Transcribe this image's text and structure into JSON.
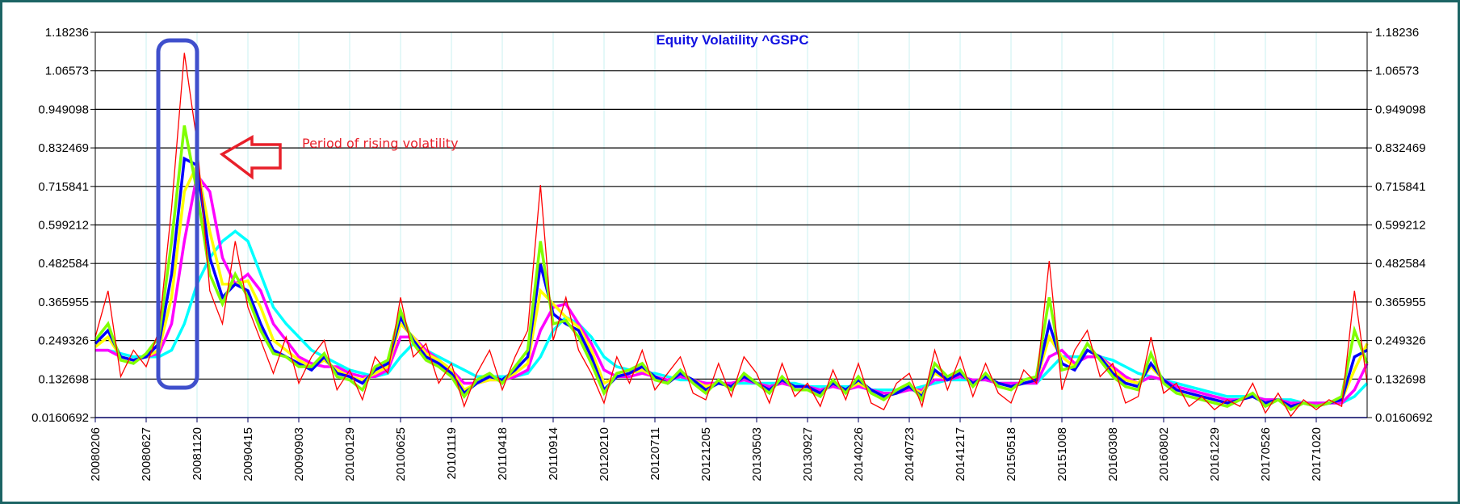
{
  "chart_data": {
    "type": "line",
    "title": "Equity Volatility ^GSPC",
    "title_color": "#1010e0",
    "xlabel": "",
    "ylabel": "",
    "ylim": [
      0.0160692,
      1.18236
    ],
    "y_ticks": [
      "0.0160692",
      "0.132698",
      "0.249326",
      "0.365955",
      "0.482584",
      "0.599212",
      "0.715841",
      "0.832469",
      "0.949098",
      "1.06573",
      "1.18236"
    ],
    "y_axis_both_sides": true,
    "x_tick_labels": [
      "20080206",
      "20080627",
      "20081120",
      "20090415",
      "20090903",
      "20100129",
      "20100625",
      "20101119",
      "20110418",
      "20110914",
      "20120210",
      "20120711",
      "20121205",
      "20130503",
      "20130927",
      "20140226",
      "20140723",
      "20141217",
      "20150518",
      "20151008",
      "20160308",
      "20160802",
      "20161229",
      "20170526",
      "20171020"
    ],
    "grid": {
      "horizontal": true,
      "vertical": true,
      "horizontal_color": "#000000",
      "vertical_color": "#c8f2f2"
    },
    "legend": "none",
    "series": [
      {
        "color": "#00ffff",
        "values": [
          0.22,
          0.22,
          0.21,
          0.2,
          0.2,
          0.2,
          0.22,
          0.3,
          0.42,
          0.5,
          0.55,
          0.58,
          0.55,
          0.45,
          0.35,
          0.3,
          0.26,
          0.22,
          0.2,
          0.18,
          0.16,
          0.15,
          0.14,
          0.15,
          0.2,
          0.24,
          0.22,
          0.2,
          0.18,
          0.16,
          0.14,
          0.14,
          0.14,
          0.14,
          0.15,
          0.2,
          0.28,
          0.32,
          0.3,
          0.26,
          0.2,
          0.17,
          0.16,
          0.15,
          0.15,
          0.14,
          0.13,
          0.13,
          0.12,
          0.12,
          0.12,
          0.12,
          0.12,
          0.12,
          0.12,
          0.12,
          0.11,
          0.11,
          0.11,
          0.11,
          0.11,
          0.1,
          0.1,
          0.1,
          0.1,
          0.11,
          0.12,
          0.13,
          0.13,
          0.13,
          0.13,
          0.12,
          0.12,
          0.12,
          0.12,
          0.16,
          0.2,
          0.2,
          0.2,
          0.2,
          0.19,
          0.17,
          0.15,
          0.14,
          0.13,
          0.12,
          0.11,
          0.1,
          0.09,
          0.08,
          0.08,
          0.08,
          0.07,
          0.07,
          0.07,
          0.06,
          0.06,
          0.06,
          0.06,
          0.08,
          0.12
        ]
      },
      {
        "color": "#ff00ff",
        "values": [
          0.22,
          0.22,
          0.2,
          0.19,
          0.2,
          0.21,
          0.3,
          0.55,
          0.75,
          0.7,
          0.5,
          0.42,
          0.45,
          0.4,
          0.3,
          0.25,
          0.2,
          0.18,
          0.17,
          0.17,
          0.15,
          0.14,
          0.14,
          0.16,
          0.26,
          0.26,
          0.22,
          0.19,
          0.16,
          0.12,
          0.12,
          0.13,
          0.13,
          0.14,
          0.16,
          0.28,
          0.35,
          0.36,
          0.3,
          0.24,
          0.16,
          0.14,
          0.14,
          0.15,
          0.14,
          0.13,
          0.14,
          0.13,
          0.12,
          0.12,
          0.12,
          0.13,
          0.12,
          0.11,
          0.12,
          0.11,
          0.11,
          0.1,
          0.11,
          0.1,
          0.11,
          0.1,
          0.09,
          0.09,
          0.1,
          0.1,
          0.13,
          0.13,
          0.14,
          0.13,
          0.13,
          0.12,
          0.12,
          0.12,
          0.12,
          0.2,
          0.22,
          0.18,
          0.2,
          0.2,
          0.17,
          0.14,
          0.12,
          0.14,
          0.13,
          0.11,
          0.1,
          0.09,
          0.08,
          0.07,
          0.07,
          0.08,
          0.07,
          0.07,
          0.06,
          0.06,
          0.06,
          0.06,
          0.06,
          0.1,
          0.18
        ]
      },
      {
        "color": "#ffff00",
        "values": [
          0.23,
          0.26,
          0.2,
          0.19,
          0.2,
          0.22,
          0.38,
          0.7,
          0.78,
          0.58,
          0.42,
          0.42,
          0.43,
          0.35,
          0.25,
          0.22,
          0.19,
          0.17,
          0.19,
          0.16,
          0.14,
          0.13,
          0.15,
          0.17,
          0.3,
          0.26,
          0.21,
          0.19,
          0.16,
          0.1,
          0.12,
          0.13,
          0.13,
          0.15,
          0.18,
          0.4,
          0.36,
          0.32,
          0.29,
          0.22,
          0.12,
          0.14,
          0.15,
          0.16,
          0.14,
          0.12,
          0.15,
          0.13,
          0.11,
          0.12,
          0.11,
          0.14,
          0.12,
          0.1,
          0.13,
          0.11,
          0.11,
          0.09,
          0.12,
          0.1,
          0.12,
          0.1,
          0.08,
          0.09,
          0.11,
          0.09,
          0.15,
          0.13,
          0.15,
          0.12,
          0.14,
          0.12,
          0.11,
          0.12,
          0.13,
          0.26,
          0.2,
          0.17,
          0.22,
          0.2,
          0.16,
          0.13,
          0.12,
          0.17,
          0.13,
          0.1,
          0.09,
          0.08,
          0.07,
          0.06,
          0.07,
          0.08,
          0.06,
          0.07,
          0.05,
          0.06,
          0.05,
          0.06,
          0.07,
          0.16,
          0.24
        ]
      },
      {
        "color": "#0000ff",
        "values": [
          0.24,
          0.28,
          0.2,
          0.19,
          0.2,
          0.24,
          0.45,
          0.8,
          0.78,
          0.5,
          0.38,
          0.42,
          0.4,
          0.3,
          0.22,
          0.2,
          0.18,
          0.16,
          0.2,
          0.15,
          0.14,
          0.12,
          0.16,
          0.18,
          0.32,
          0.25,
          0.2,
          0.18,
          0.15,
          0.09,
          0.12,
          0.14,
          0.13,
          0.16,
          0.2,
          0.48,
          0.33,
          0.3,
          0.28,
          0.2,
          0.1,
          0.14,
          0.15,
          0.17,
          0.14,
          0.12,
          0.15,
          0.13,
          0.1,
          0.12,
          0.11,
          0.14,
          0.12,
          0.1,
          0.13,
          0.11,
          0.11,
          0.09,
          0.12,
          0.1,
          0.13,
          0.1,
          0.08,
          0.09,
          0.11,
          0.08,
          0.16,
          0.13,
          0.15,
          0.12,
          0.14,
          0.12,
          0.11,
          0.12,
          0.13,
          0.3,
          0.18,
          0.16,
          0.22,
          0.2,
          0.15,
          0.12,
          0.11,
          0.18,
          0.13,
          0.1,
          0.09,
          0.08,
          0.07,
          0.06,
          0.07,
          0.08,
          0.06,
          0.07,
          0.05,
          0.06,
          0.05,
          0.06,
          0.07,
          0.2,
          0.22
        ]
      },
      {
        "color": "#80ff00",
        "values": [
          0.25,
          0.3,
          0.19,
          0.18,
          0.21,
          0.26,
          0.55,
          0.9,
          0.7,
          0.45,
          0.36,
          0.45,
          0.38,
          0.28,
          0.21,
          0.2,
          0.17,
          0.17,
          0.21,
          0.14,
          0.13,
          0.1,
          0.17,
          0.19,
          0.34,
          0.24,
          0.19,
          0.17,
          0.14,
          0.08,
          0.13,
          0.15,
          0.12,
          0.17,
          0.22,
          0.55,
          0.3,
          0.31,
          0.26,
          0.18,
          0.09,
          0.15,
          0.16,
          0.18,
          0.13,
          0.12,
          0.16,
          0.12,
          0.09,
          0.13,
          0.1,
          0.15,
          0.12,
          0.09,
          0.14,
          0.1,
          0.1,
          0.08,
          0.13,
          0.09,
          0.14,
          0.09,
          0.07,
          0.1,
          0.12,
          0.07,
          0.18,
          0.14,
          0.16,
          0.11,
          0.15,
          0.11,
          0.1,
          0.13,
          0.14,
          0.38,
          0.16,
          0.17,
          0.24,
          0.19,
          0.14,
          0.11,
          0.1,
          0.21,
          0.12,
          0.09,
          0.08,
          0.07,
          0.06,
          0.05,
          0.07,
          0.09,
          0.05,
          0.07,
          0.04,
          0.06,
          0.05,
          0.06,
          0.08,
          0.28,
          0.18
        ]
      },
      {
        "color": "#ff0000",
        "values": [
          0.26,
          0.4,
          0.14,
          0.22,
          0.17,
          0.28,
          0.65,
          1.12,
          0.85,
          0.4,
          0.3,
          0.55,
          0.35,
          0.25,
          0.15,
          0.26,
          0.12,
          0.2,
          0.25,
          0.1,
          0.16,
          0.07,
          0.2,
          0.15,
          0.38,
          0.2,
          0.24,
          0.12,
          0.18,
          0.05,
          0.15,
          0.22,
          0.1,
          0.2,
          0.28,
          0.72,
          0.25,
          0.38,
          0.22,
          0.15,
          0.06,
          0.2,
          0.12,
          0.22,
          0.1,
          0.15,
          0.2,
          0.09,
          0.07,
          0.18,
          0.08,
          0.2,
          0.15,
          0.06,
          0.18,
          0.08,
          0.12,
          0.05,
          0.16,
          0.07,
          0.18,
          0.06,
          0.04,
          0.12,
          0.15,
          0.05,
          0.22,
          0.1,
          0.2,
          0.08,
          0.18,
          0.09,
          0.06,
          0.16,
          0.12,
          0.49,
          0.1,
          0.22,
          0.28,
          0.14,
          0.18,
          0.06,
          0.08,
          0.26,
          0.09,
          0.12,
          0.05,
          0.08,
          0.04,
          0.07,
          0.05,
          0.12,
          0.03,
          0.09,
          0.02,
          0.07,
          0.04,
          0.07,
          0.05,
          0.4,
          0.12
        ]
      }
    ],
    "annotations": {
      "text": "Period of rising volatility",
      "text_color": "#e8202a",
      "arrow_color": "#e8202a",
      "highlight_box_color": "#3f4fcc",
      "highlight_range": [
        "20080627",
        "20081120"
      ]
    }
  }
}
